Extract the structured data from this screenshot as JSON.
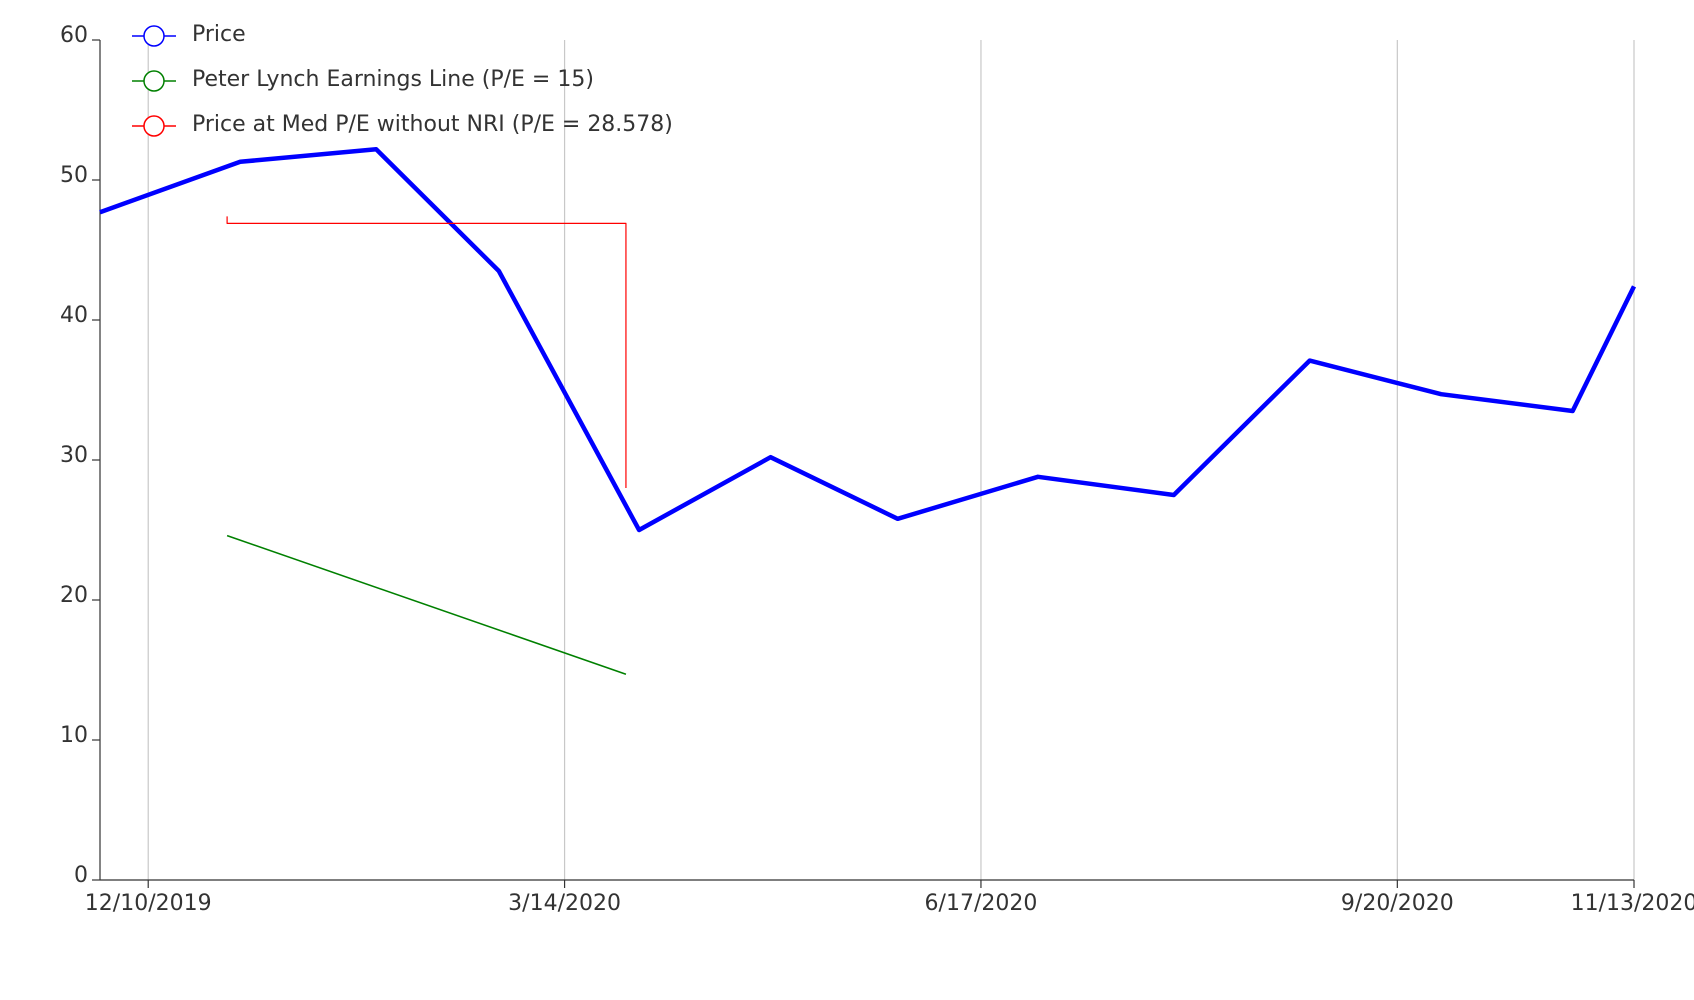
{
  "chart_data": {
    "type": "line",
    "xlim": [
      "11/29/2019",
      "11/13/2020"
    ],
    "xticks": [
      "12/10/2019",
      "3/14/2020",
      "6/17/2020",
      "9/20/2020",
      "11/13/2020"
    ],
    "ylim": [
      0,
      60
    ],
    "yticks": [
      0,
      10,
      20,
      30,
      40,
      50,
      60
    ],
    "grid": "x",
    "legend": "upper left",
    "series": [
      {
        "name": "Price",
        "color": "#0000ff",
        "x": [
          "11/29/2019",
          "12/31/2019",
          "1/31/2020",
          "2/28/2020",
          "3/31/2020",
          "4/30/2020",
          "5/29/2020",
          "6/30/2020",
          "7/31/2020",
          "8/31/2020",
          "9/30/2020",
          "10/30/2020",
          "11/13/2020"
        ],
        "values": [
          47.7,
          51.3,
          52.2,
          43.5,
          25.0,
          30.2,
          25.8,
          28.8,
          27.5,
          37.1,
          34.7,
          33.5,
          42.4
        ]
      },
      {
        "name": "Peter Lynch Earnings Line (P/E = 15)",
        "color": "#008000",
        "x": [
          "12/28/2019",
          "3/28/2020"
        ],
        "values": [
          24.6,
          14.7
        ]
      },
      {
        "name": "Price at Med P/E without NRI (P/E = 28.578)",
        "color": "#ff0000",
        "x": [
          "12/28/2019",
          "12/28/2019",
          "3/28/2020",
          "3/28/2020"
        ],
        "values": [
          47.4,
          46.9,
          46.9,
          28.0
        ]
      }
    ]
  }
}
